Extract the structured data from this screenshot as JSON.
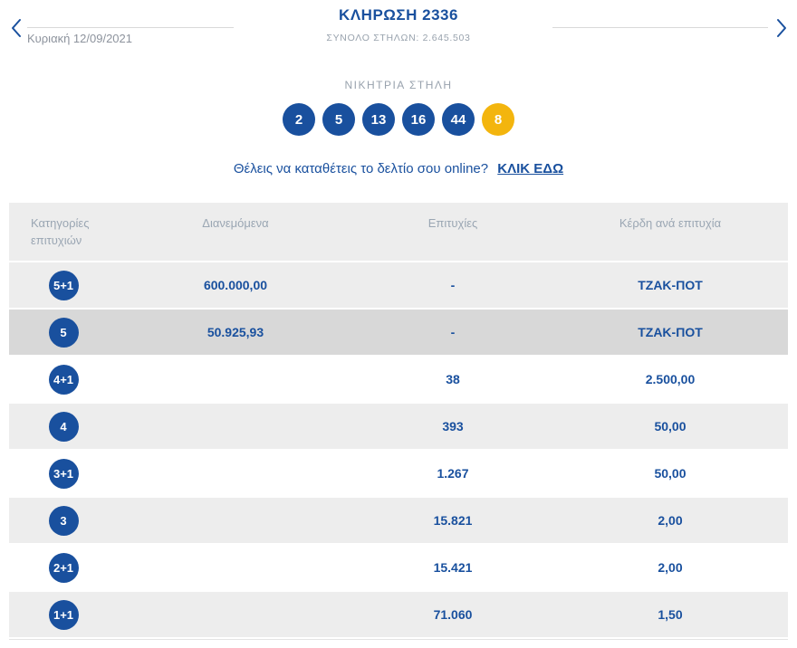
{
  "header": {
    "title": "ΚΛΗΡΩΣΗ 2336",
    "subtitle": "ΣΥΝΟΛΟ ΣΤΗΛΩΝ: 2.645.503",
    "date": "Κυριακή 12/09/2021"
  },
  "winning": {
    "label": "ΝΙΚΗΤΡΙΑ ΣΤΗΛΗ",
    "numbers": [
      "2",
      "5",
      "13",
      "16",
      "44"
    ],
    "joker": "8"
  },
  "online": {
    "text": "Θέλεις να καταθέτεις το δελτίο σου online?",
    "link": "ΚΛΙΚ ΕΔΩ"
  },
  "table": {
    "headers": [
      "Κατηγορίες επιτυχιών",
      "Διανεμόμενα",
      "Επιτυχίες",
      "Κέρδη ανά επιτυχία"
    ],
    "rows": [
      {
        "category": "5+1",
        "distributed": "600.000,00",
        "wins": "-",
        "prize": "ΤΖΑΚ-ΠΟΤ",
        "shade": "light"
      },
      {
        "category": "5",
        "distributed": "50.925,93",
        "wins": "-",
        "prize": "ΤΖΑΚ-ΠΟΤ",
        "shade": "dark"
      },
      {
        "category": "4+1",
        "distributed": "",
        "wins": "38",
        "prize": "2.500,00",
        "shade": "white"
      },
      {
        "category": "4",
        "distributed": "",
        "wins": "393",
        "prize": "50,00",
        "shade": "light"
      },
      {
        "category": "3+1",
        "distributed": "",
        "wins": "1.267",
        "prize": "50,00",
        "shade": "white"
      },
      {
        "category": "3",
        "distributed": "",
        "wins": "15.821",
        "prize": "2,00",
        "shade": "light"
      },
      {
        "category": "2+1",
        "distributed": "",
        "wins": "15.421",
        "prize": "2,00",
        "shade": "white"
      },
      {
        "category": "1+1",
        "distributed": "",
        "wins": "71.060",
        "prize": "1,50",
        "shade": "light"
      }
    ]
  },
  "colors": {
    "blue": "#19509e",
    "yellow": "#f3b50e",
    "gray_text": "#98a2ad",
    "row_light": "#ededed",
    "row_dark": "#d8d8d8",
    "row_white": "#ffffff",
    "divider": "#d9d9d9"
  }
}
